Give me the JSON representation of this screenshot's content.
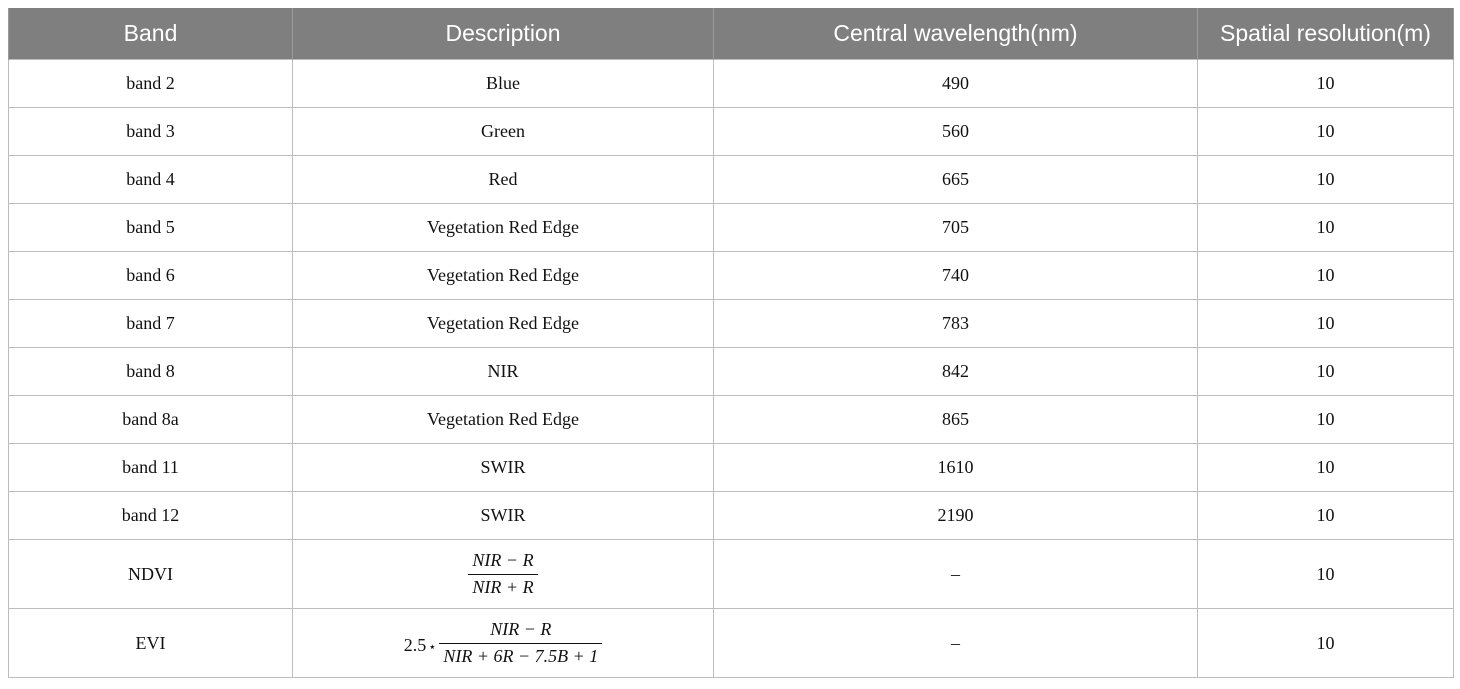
{
  "headers": [
    "Band",
    "Description",
    "Central wavelength(nm)",
    "Spatial resolution(m)"
  ],
  "rows": [
    {
      "band": "band 2",
      "description": "Blue",
      "wavelength": "490",
      "resolution": "10"
    },
    {
      "band": "band 3",
      "description": "Green",
      "wavelength": "560",
      "resolution": "10"
    },
    {
      "band": "band 4",
      "description": "Red",
      "wavelength": "665",
      "resolution": "10"
    },
    {
      "band": "band 5",
      "description": "Vegetation Red Edge",
      "wavelength": "705",
      "resolution": "10"
    },
    {
      "band": "band 6",
      "description": "Vegetation Red Edge",
      "wavelength": "740",
      "resolution": "10"
    },
    {
      "band": "band 7",
      "description": "Vegetation Red Edge",
      "wavelength": "783",
      "resolution": "10"
    },
    {
      "band": "band 8",
      "description": "NIR",
      "wavelength": "842",
      "resolution": "10"
    },
    {
      "band": "band 8a",
      "description": "Vegetation Red Edge",
      "wavelength": "865",
      "resolution": "10"
    },
    {
      "band": "band 11",
      "description": "SWIR",
      "wavelength": "1610",
      "resolution": "10"
    },
    {
      "band": "band 12",
      "description": "SWIR",
      "wavelength": "2190",
      "resolution": "10"
    }
  ],
  "ndvi": {
    "band": "NDVI",
    "numerator": "NIR − R",
    "denominator": "NIR + R",
    "wavelength": "–",
    "resolution": "10"
  },
  "evi": {
    "band": "EVI",
    "coefficient": "2.5",
    "operator": "⋆",
    "numerator": "NIR − R",
    "denominator": "NIR + 6R − 7.5B + 1",
    "wavelength": "–",
    "resolution": "10"
  }
}
